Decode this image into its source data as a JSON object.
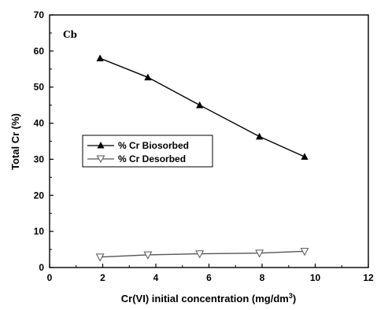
{
  "chart_data": {
    "type": "line",
    "panel_label": "Cb",
    "xlabel": "Cr(VI) initial concentration (mg/dm",
    "xlabel_sup": "3",
    "xlabel_end": ")",
    "ylabel": "Total Cr (%)",
    "xlim": [
      0,
      12
    ],
    "ylim": [
      0,
      70
    ],
    "x_ticks": [
      0,
      2,
      4,
      6,
      8,
      10,
      12
    ],
    "y_ticks": [
      0,
      10,
      20,
      30,
      40,
      50,
      60,
      70
    ],
    "grid": false,
    "legend_position": "middle-left",
    "series": [
      {
        "name": "% Cr Biosorbed",
        "marker": "triangle-up-filled",
        "color": "#000000",
        "x": [
          1.9,
          3.7,
          5.65,
          7.9,
          9.6
        ],
        "y": [
          58,
          52.7,
          45,
          36.3,
          30.7
        ]
      },
      {
        "name": "% Cr Desorbed",
        "marker": "triangle-down-open",
        "color": "#555555",
        "x": [
          1.9,
          3.7,
          5.65,
          7.9,
          9.6
        ],
        "y": [
          2.9,
          3.5,
          3.8,
          4.0,
          4.5
        ]
      }
    ]
  }
}
